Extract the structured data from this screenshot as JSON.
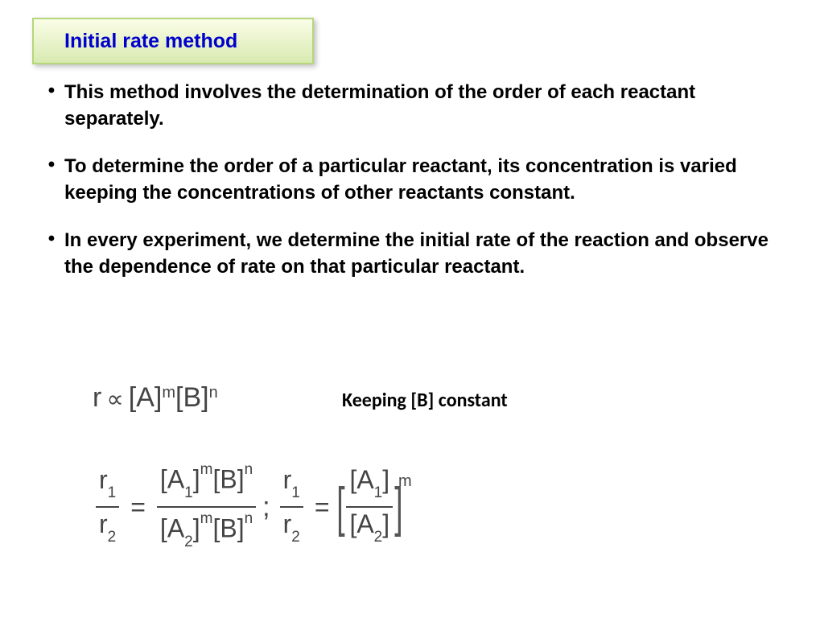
{
  "title": "Initial rate method",
  "bullets": [
    "This method involves the determination of the order of each reactant separately.",
    "To determine the order of a particular reactant, its concentration is varied keeping the concentrations of other reactants constant.",
    "In every experiment, we determine the initial rate of the reaction and observe the dependence of rate on that particular reactant."
  ],
  "eq1": {
    "r": "r",
    "prop": "∝",
    "A": "[A]",
    "m": "m",
    "B": "[B]",
    "n": "n"
  },
  "keeping": "Keeping [B] constant",
  "eq2": {
    "r": "r",
    "one": "1",
    "two": "2",
    "eq": "=",
    "A": "[A",
    "close": "]",
    "B": "[B]",
    "m": "m",
    "n": "n",
    "semi": ";"
  },
  "colors": {
    "title": "#0000cc",
    "box_grad_top": "#fbfde8",
    "box_grad_bot": "#d8eab0",
    "box_border": "#b5d67a",
    "text": "#000000",
    "eq_text": "#444444",
    "bg": "#ffffff"
  }
}
